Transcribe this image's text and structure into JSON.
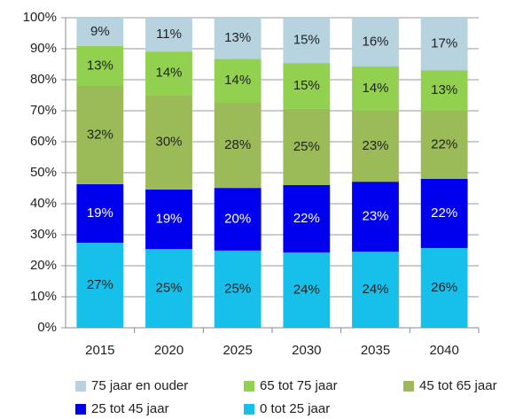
{
  "chart_data": {
    "type": "stacked_bar",
    "categories": [
      "2015",
      "2020",
      "2025",
      "2030",
      "2035",
      "2040"
    ],
    "series": [
      {
        "name": "0 tot 25 jaar",
        "color": "#17c0ea",
        "label_color": "#222222",
        "values": [
          27.4,
          25.4,
          24.9,
          24.3,
          24.5,
          25.7
        ],
        "value_labels": [
          "27%",
          "25%",
          "25%",
          "24%",
          "24%",
          "26%"
        ]
      },
      {
        "name": "25 tot 45 jaar",
        "color": "#0000ee",
        "label_color": "#ffffff",
        "values": [
          18.9,
          19.2,
          20.2,
          21.7,
          22.6,
          22.3
        ],
        "value_labels": [
          "19%",
          "19%",
          "20%",
          "22%",
          "23%",
          "22%"
        ]
      },
      {
        "name": "45 tot 65 jaar",
        "color": "#9bbb59",
        "label_color": "#222222",
        "values": [
          31.7,
          30.5,
          27.6,
          24.6,
          22.9,
          22.0
        ],
        "value_labels": [
          "32%",
          "30%",
          "28%",
          "25%",
          "23%",
          "22%"
        ]
      },
      {
        "name": "65 tot 75 jaar",
        "color": "#92d050",
        "label_color": "#222222",
        "values": [
          12.9,
          14.0,
          14.0,
          14.8,
          14.3,
          13.1
        ],
        "value_labels": [
          "13%",
          "14%",
          "14%",
          "15%",
          "14%",
          "13%"
        ]
      },
      {
        "name": "75 jaar en ouder",
        "color": "#b7d3e0",
        "label_color": "#222222",
        "values": [
          9.1,
          10.9,
          13.3,
          14.6,
          15.7,
          16.9
        ],
        "value_labels": [
          "9%",
          "11%",
          "13%",
          "15%",
          "16%",
          "17%"
        ]
      }
    ],
    "ylim": [
      0,
      100
    ],
    "yticks": [
      {
        "value": 0,
        "label": "0%"
      },
      {
        "value": 10,
        "label": "10%"
      },
      {
        "value": 20,
        "label": "20%"
      },
      {
        "value": 30,
        "label": "30%"
      },
      {
        "value": 40,
        "label": "40%"
      },
      {
        "value": 50,
        "label": "50%"
      },
      {
        "value": 60,
        "label": "60%"
      },
      {
        "value": 70,
        "label": "70%"
      },
      {
        "value": 80,
        "label": "80%"
      },
      {
        "value": 90,
        "label": "90%"
      },
      {
        "value": 100,
        "label": "100%"
      }
    ],
    "grid": true
  }
}
